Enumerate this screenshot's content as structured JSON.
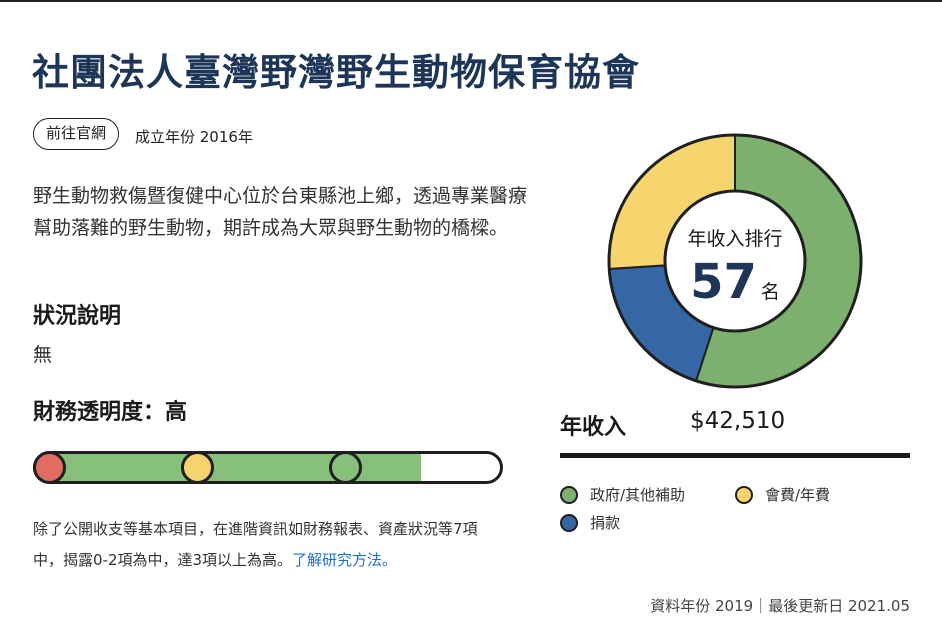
{
  "org": {
    "name": "社團法人臺灣野灣野生動物保育協會",
    "website_button": "前往官網",
    "founded": "成立年份 2016年",
    "description": "野生動物救傷暨復健中心位於台東縣池上鄉，透過專業醫療幫助落難的野生動物，期許成為大眾與野生動物的橋樑。"
  },
  "status": {
    "heading": "狀況說明",
    "value": "無"
  },
  "transparency": {
    "heading": "財務透明度：高",
    "level_fraction": 0.83,
    "markers": [
      {
        "color": "#e06c64"
      },
      {
        "color": "#f7d36e"
      },
      {
        "color": "#86c07a"
      }
    ],
    "note": "除了公開收支等基本項目，在進階資訊如財務報表、資產狀況等7項中，揭露0-2項為中，達3項以上為高。",
    "link_text": "了解研究方法。"
  },
  "income": {
    "rank_label": "年收入排行",
    "rank_value": "57",
    "rank_unit": "名",
    "label": "年收入",
    "value": "$42,510"
  },
  "chart_data": {
    "type": "pie",
    "title": "",
    "categories": [
      "政府/其他補助",
      "捐款",
      "會費/年費"
    ],
    "values": [
      55,
      19,
      26
    ],
    "colors": [
      "#7daf6f",
      "#3567a6",
      "#f6d46e"
    ]
  },
  "legend": [
    {
      "label": "政府/其他補助",
      "color": "#7daf6f"
    },
    {
      "label": "會費/年費",
      "color": "#f6d46e"
    },
    {
      "label": "捐款",
      "color": "#3567a6"
    }
  ],
  "footer": "資料年份 2019｜最後更新日 2021.05"
}
